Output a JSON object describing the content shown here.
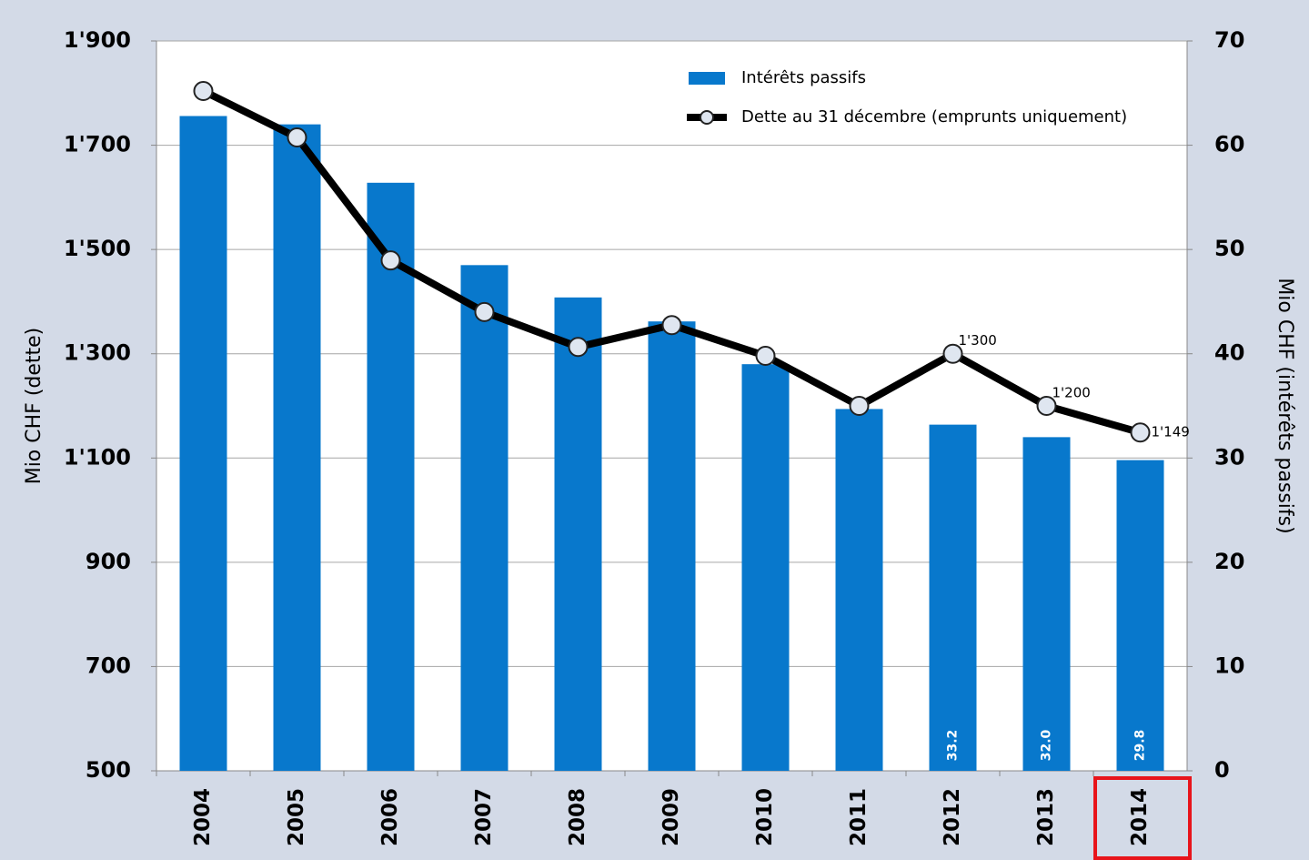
{
  "chart_data": {
    "type": "bar",
    "categories": [
      "2004",
      "2005",
      "2006",
      "2007",
      "2008",
      "2009",
      "2010",
      "2011",
      "2012",
      "2013",
      "2014"
    ],
    "series": [
      {
        "name": "Intérêts passifs",
        "type": "bar",
        "axis": "y2",
        "color": "#0878cc",
        "values": [
          62.8,
          62.0,
          56.4,
          48.5,
          45.4,
          43.1,
          39.0,
          34.7,
          33.2,
          32.0,
          29.8
        ],
        "value_labels": [
          null,
          null,
          null,
          null,
          null,
          null,
          null,
          null,
          "33.2",
          "32.0",
          "29.8"
        ]
      },
      {
        "name": "Dette au 31 décembre (emprunts uniquement)",
        "type": "line",
        "axis": "y",
        "color": "#000000",
        "values": [
          1804,
          1715,
          1479,
          1380,
          1313,
          1355,
          1296,
          1200,
          1300,
          1200,
          1149
        ],
        "value_labels": [
          null,
          null,
          null,
          null,
          null,
          null,
          null,
          null,
          "1'300",
          "1'200",
          "1'149"
        ]
      }
    ],
    "ylabel": "Mio CHF (dette)",
    "y2label": "Mio CHF (intérêts passifs)",
    "ylim": [
      500,
      1900
    ],
    "yticks": [
      500,
      700,
      900,
      {
        "value": 1100,
        "label": "1'100"
      },
      {
        "value": 1300,
        "label": "1'300"
      },
      {
        "value": 1500,
        "label": "1'500"
      },
      {
        "value": 1700,
        "label": "1'700"
      },
      {
        "value": 1900,
        "label": "1'900"
      }
    ],
    "y2lim": [
      0,
      70
    ],
    "y2ticks": [
      0,
      10,
      20,
      30,
      40,
      50,
      60,
      70
    ],
    "grid": true
  }
}
